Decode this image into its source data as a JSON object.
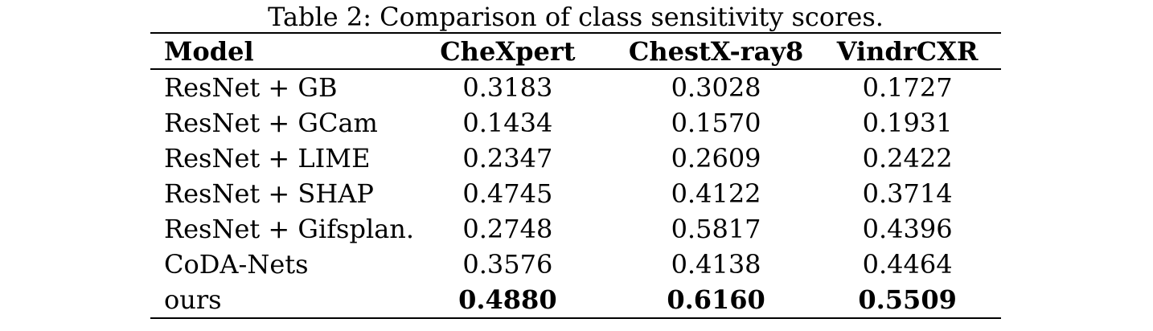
{
  "table": {
    "caption": "Table 2: Comparison of class sensitivity scores.",
    "columns": {
      "model": "Model",
      "chexpert": "CheXpert",
      "chestxray8": "ChestX-ray8",
      "vindrcxr": "VindrCXR"
    },
    "rows": [
      {
        "model": "ResNet + GB",
        "values": [
          "0.3183",
          "0.3028",
          "0.1727"
        ]
      },
      {
        "model": "ResNet + GCam",
        "values": [
          "0.1434",
          "0.1570",
          "0.1931"
        ]
      },
      {
        "model": "ResNet + LIME",
        "values": [
          "0.2347",
          "0.2609",
          "0.2422"
        ]
      },
      {
        "model": "ResNet + SHAP",
        "values": [
          "0.4745",
          "0.4122",
          "0.3714"
        ]
      },
      {
        "model": "ResNet + Gifsplan.",
        "values": [
          "0.2748",
          "0.5817",
          "0.4396"
        ]
      },
      {
        "model": "CoDA-Nets",
        "values": [
          "0.3576",
          "0.4138",
          "0.4464"
        ]
      },
      {
        "model": "ours",
        "values": [
          "0.4880",
          "0.6160",
          "0.5509"
        ],
        "values_bold": true
      }
    ],
    "colors": {
      "text": "#000000",
      "background": "#ffffff",
      "rule": "#000000"
    }
  }
}
